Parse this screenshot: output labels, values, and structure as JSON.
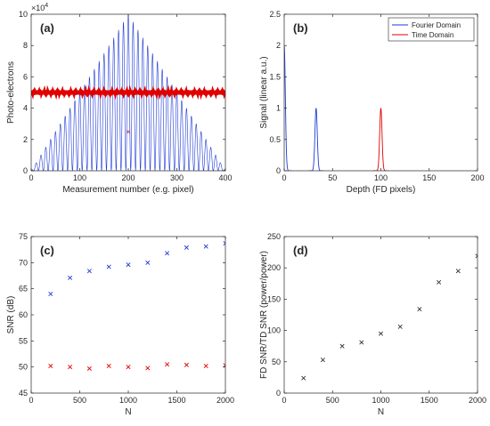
{
  "chart_data": [
    {
      "type": "line",
      "panel_label": "(a)",
      "xlabel": "Measurement number (e.g. pixel)",
      "ylabel": "Photo-electrons",
      "y_multiplier_label": "×10^4",
      "xlim": [
        0,
        400
      ],
      "ylim": [
        0,
        10
      ],
      "xticks": [
        0,
        100,
        200,
        300,
        400
      ],
      "yticks": [
        0,
        2,
        4,
        6,
        8,
        10
      ],
      "series": [
        {
          "description": "blue fringe pattern: cos^2 fringes under a triangular envelope peaking at x=200",
          "color": "#1f3bd6",
          "envelope_peak": 10,
          "fringe_period": 10,
          "x_range": [
            0,
            400
          ]
        },
        {
          "description": "red near-constant level",
          "color": "#e00000",
          "constant_value": 5,
          "x_range": [
            0,
            400
          ]
        }
      ],
      "annotations": [
        {
          "text": "×",
          "x": 200,
          "y": 2.5,
          "color": "#e00000"
        }
      ]
    },
    {
      "type": "line",
      "panel_label": "(b)",
      "xlabel": "Depth (FD pixels)",
      "ylabel": "Signal (linear a.u.)",
      "xlim": [
        0,
        200
      ],
      "ylim": [
        0,
        2.5
      ],
      "xticks": [
        0,
        50,
        100,
        150,
        200
      ],
      "yticks": [
        0,
        0.5,
        1,
        1.5,
        2,
        2.5
      ],
      "legend_position": "top-right",
      "series": [
        {
          "name": "Fourier Domain",
          "color": "#1f3bd6",
          "peaks": [
            {
              "x": 0,
              "y": 2.0
            },
            {
              "x": 33,
              "y": 1.0
            }
          ]
        },
        {
          "name": "Time Domain",
          "color": "#e00000",
          "peaks": [
            {
              "x": 100,
              "y": 1.0
            }
          ]
        }
      ]
    },
    {
      "type": "scatter",
      "panel_label": "(c)",
      "xlabel": "N",
      "ylabel": "SNR (dB)",
      "xlim": [
        0,
        2000
      ],
      "ylim": [
        45,
        75
      ],
      "xticks": [
        0,
        500,
        1000,
        1500,
        2000
      ],
      "yticks": [
        45,
        50,
        55,
        60,
        65,
        70,
        75
      ],
      "x": [
        200,
        400,
        600,
        800,
        1000,
        1200,
        1400,
        1600,
        1800,
        2000
      ],
      "series": [
        {
          "color": "#1f3bd6",
          "marker": "x",
          "values": [
            64.0,
            67.1,
            68.4,
            69.2,
            69.6,
            70.0,
            71.8,
            72.9,
            73.1,
            73.7
          ]
        },
        {
          "color": "#e00000",
          "marker": "x",
          "values": [
            50.2,
            50.0,
            49.7,
            50.2,
            50.0,
            49.8,
            50.5,
            50.4,
            50.2,
            50.3
          ]
        }
      ]
    },
    {
      "type": "scatter",
      "panel_label": "(d)",
      "xlabel": "N",
      "ylabel": "FD SNR/TD SNR (power/power)",
      "xlim": [
        0,
        2000
      ],
      "ylim": [
        0,
        250
      ],
      "xticks": [
        0,
        500,
        1000,
        1500,
        2000
      ],
      "yticks": [
        0,
        50,
        100,
        150,
        200,
        250
      ],
      "x": [
        200,
        400,
        600,
        800,
        1000,
        1200,
        1400,
        1600,
        1800,
        2000
      ],
      "series": [
        {
          "color": "#333333",
          "marker": "x",
          "values": [
            24,
            53,
            75,
            81,
            95,
            106,
            134,
            177,
            195,
            219
          ]
        }
      ]
    }
  ]
}
